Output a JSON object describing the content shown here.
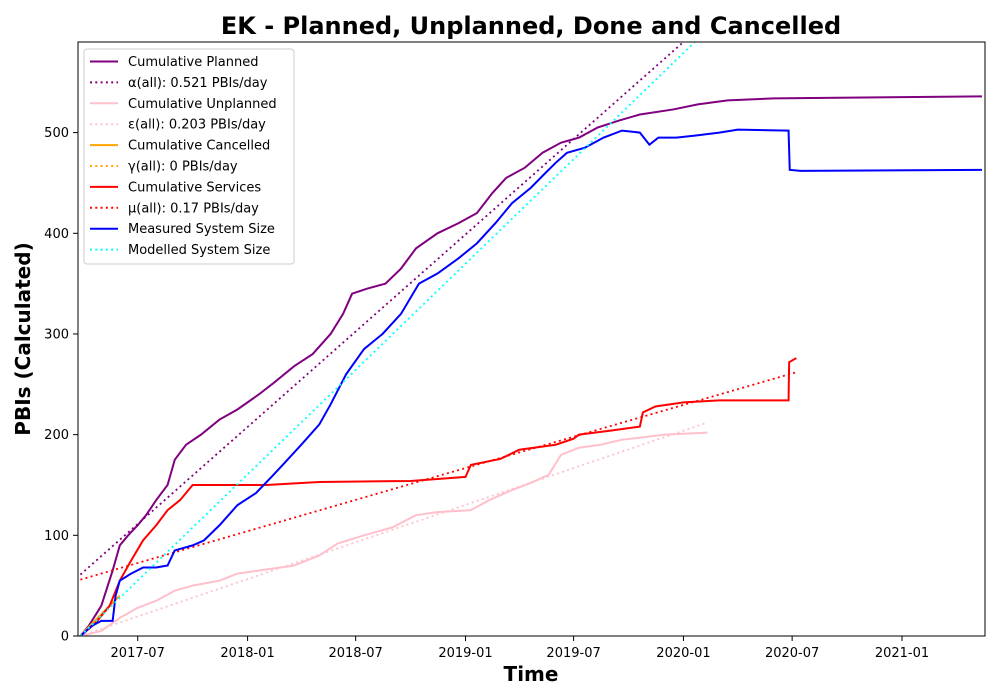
{
  "chart_data": {
    "type": "line",
    "title": "EK - Planned, Unplanned, Done  and Cancelled",
    "xlabel": "Time",
    "ylabel": "PBIs (Calculated)",
    "xlim": [
      "2017-03-23",
      "2021-05-20"
    ],
    "ylim": [
      0,
      590
    ],
    "x_ticks": [
      "2017-07",
      "2018-01",
      "2018-07",
      "2019-01",
      "2019-07",
      "2020-01",
      "2020-07",
      "2021-01"
    ],
    "y_ticks": [
      0,
      100,
      200,
      300,
      400,
      500
    ],
    "grid": false,
    "legend_position": "top-left",
    "series": [
      {
        "name": "Cumulative Planned",
        "color": "#800080",
        "style": "solid",
        "points": [
          [
            "2017-03-27",
            0
          ],
          [
            "2017-04-10",
            10
          ],
          [
            "2017-05-01",
            30
          ],
          [
            "2017-05-20",
            65
          ],
          [
            "2017-06-01",
            90
          ],
          [
            "2017-06-15",
            100
          ],
          [
            "2017-07-01",
            110
          ],
          [
            "2017-07-15",
            120
          ],
          [
            "2017-08-01",
            135
          ],
          [
            "2017-08-20",
            150
          ],
          [
            "2017-09-01",
            175
          ],
          [
            "2017-09-20",
            190
          ],
          [
            "2017-10-15",
            200
          ],
          [
            "2017-11-15",
            215
          ],
          [
            "2017-12-15",
            225
          ],
          [
            "2018-01-20",
            240
          ],
          [
            "2018-02-15",
            252
          ],
          [
            "2018-03-20",
            268
          ],
          [
            "2018-04-20",
            280
          ],
          [
            "2018-05-20",
            300
          ],
          [
            "2018-06-10",
            320
          ],
          [
            "2018-06-25",
            340
          ],
          [
            "2018-07-20",
            345
          ],
          [
            "2018-08-20",
            350
          ],
          [
            "2018-09-15",
            365
          ],
          [
            "2018-10-10",
            385
          ],
          [
            "2018-11-15",
            400
          ],
          [
            "2018-12-20",
            410
          ],
          [
            "2019-01-20",
            420
          ],
          [
            "2019-02-15",
            440
          ],
          [
            "2019-03-10",
            455
          ],
          [
            "2019-04-10",
            465
          ],
          [
            "2019-05-10",
            480
          ],
          [
            "2019-06-10",
            490
          ],
          [
            "2019-07-10",
            495
          ],
          [
            "2019-08-10",
            505
          ],
          [
            "2019-09-15",
            512
          ],
          [
            "2019-10-20",
            518
          ],
          [
            "2019-12-15",
            523
          ],
          [
            "2020-01-25",
            528
          ],
          [
            "2020-03-15",
            532
          ],
          [
            "2020-06-01",
            534
          ],
          [
            "2021-05-15",
            536
          ]
        ]
      },
      {
        "name": "α(all): 0.521 PBIs/day",
        "color": "#800080",
        "style": "dotted",
        "points": [
          [
            "2017-03-27",
            61
          ],
          [
            "2020-01-01",
            590
          ]
        ]
      },
      {
        "name": "Cumulative Unplanned",
        "color": "#ffc0cb",
        "style": "solid",
        "points": [
          [
            "2017-03-27",
            0
          ],
          [
            "2017-05-01",
            5
          ],
          [
            "2017-06-01",
            18
          ],
          [
            "2017-07-01",
            28
          ],
          [
            "2017-08-01",
            35
          ],
          [
            "2017-09-01",
            45
          ],
          [
            "2017-10-01",
            50
          ],
          [
            "2017-11-15",
            55
          ],
          [
            "2017-12-15",
            62
          ],
          [
            "2018-02-01",
            66
          ],
          [
            "2018-03-20",
            70
          ],
          [
            "2018-05-01",
            80
          ],
          [
            "2018-06-01",
            92
          ],
          [
            "2018-07-15",
            100
          ],
          [
            "2018-09-01",
            108
          ],
          [
            "2018-10-10",
            120
          ],
          [
            "2018-11-15",
            123
          ],
          [
            "2019-01-10",
            125
          ],
          [
            "2019-02-10",
            135
          ],
          [
            "2019-03-20",
            145
          ],
          [
            "2019-04-20",
            152
          ],
          [
            "2019-05-20",
            160
          ],
          [
            "2019-06-10",
            180
          ],
          [
            "2019-07-10",
            187
          ],
          [
            "2019-08-15",
            190
          ],
          [
            "2019-09-20",
            195
          ],
          [
            "2019-10-20",
            197
          ],
          [
            "2019-12-01",
            200
          ],
          [
            "2020-02-10",
            202
          ]
        ]
      },
      {
        "name": "ε(all): 0.203 PBIs/day",
        "color": "#ffc0cb",
        "style": "dotted",
        "points": [
          [
            "2017-03-27",
            0
          ],
          [
            "2020-02-10",
            212
          ]
        ]
      },
      {
        "name": "Cumulative Cancelled",
        "color": "#ffa500",
        "style": "solid",
        "points": [
          [
            "2017-03-27",
            0
          ],
          [
            "2017-04-20",
            15
          ],
          [
            "2017-05-15",
            30
          ],
          [
            "2017-06-01",
            40
          ]
        ]
      },
      {
        "name": "γ(all): 0 PBIs/day",
        "color": "#ffa500",
        "style": "dotted",
        "points": [
          [
            "2017-03-27",
            0
          ],
          [
            "2017-06-01",
            40
          ]
        ]
      },
      {
        "name": "Cumulative Services",
        "color": "#ff0000",
        "style": "solid",
        "points": [
          [
            "2017-03-27",
            0
          ],
          [
            "2017-04-20",
            12
          ],
          [
            "2017-05-15",
            30
          ],
          [
            "2017-06-01",
            55
          ],
          [
            "2017-06-20",
            75
          ],
          [
            "2017-07-10",
            95
          ],
          [
            "2017-08-01",
            110
          ],
          [
            "2017-08-20",
            125
          ],
          [
            "2017-09-10",
            135
          ],
          [
            "2017-10-01",
            150
          ],
          [
            "2018-02-01",
            150
          ],
          [
            "2018-05-01",
            153
          ],
          [
            "2018-10-01",
            154
          ],
          [
            "2019-01-01",
            158
          ],
          [
            "2019-01-10",
            170
          ],
          [
            "2019-03-01",
            176
          ],
          [
            "2019-04-01",
            185
          ],
          [
            "2019-06-01",
            190
          ],
          [
            "2019-07-01",
            196
          ],
          [
            "2019-07-10",
            200
          ],
          [
            "2019-09-01",
            204
          ],
          [
            "2019-10-20",
            208
          ],
          [
            "2019-10-25",
            222
          ],
          [
            "2019-11-15",
            228
          ],
          [
            "2020-01-01",
            232
          ],
          [
            "2020-03-01",
            234
          ],
          [
            "2020-06-25",
            234
          ],
          [
            "2020-06-26",
            272
          ],
          [
            "2020-07-08",
            276
          ]
        ]
      },
      {
        "name": "μ(all): 0.17 PBIs/day",
        "color": "#ff0000",
        "style": "dotted",
        "points": [
          [
            "2017-03-27",
            56
          ],
          [
            "2020-07-08",
            262
          ]
        ]
      },
      {
        "name": "Measured System Size",
        "color": "#0000ff",
        "style": "solid",
        "points": [
          [
            "2017-03-27",
            0
          ],
          [
            "2017-04-15",
            10
          ],
          [
            "2017-05-01",
            15
          ],
          [
            "2017-05-20",
            15
          ],
          [
            "2017-05-25",
            40
          ],
          [
            "2017-06-01",
            55
          ],
          [
            "2017-06-20",
            62
          ],
          [
            "2017-07-10",
            68
          ],
          [
            "2017-08-01",
            68
          ],
          [
            "2017-08-20",
            70
          ],
          [
            "2017-09-01",
            85
          ],
          [
            "2017-10-01",
            90
          ],
          [
            "2017-10-20",
            95
          ],
          [
            "2017-11-15",
            110
          ],
          [
            "2017-12-15",
            130
          ],
          [
            "2018-01-15",
            142
          ],
          [
            "2018-02-10",
            158
          ],
          [
            "2018-03-01",
            170
          ],
          [
            "2018-04-01",
            190
          ],
          [
            "2018-05-01",
            210
          ],
          [
            "2018-05-20",
            230
          ],
          [
            "2018-06-15",
            260
          ],
          [
            "2018-07-15",
            285
          ],
          [
            "2018-08-15",
            300
          ],
          [
            "2018-09-15",
            320
          ],
          [
            "2018-10-15",
            350
          ],
          [
            "2018-11-15",
            360
          ],
          [
            "2018-12-20",
            375
          ],
          [
            "2019-01-20",
            390
          ],
          [
            "2019-02-20",
            410
          ],
          [
            "2019-03-20",
            430
          ],
          [
            "2019-04-20",
            445
          ],
          [
            "2019-05-15",
            460
          ],
          [
            "2019-06-01",
            470
          ],
          [
            "2019-06-20",
            480
          ],
          [
            "2019-07-20",
            485
          ],
          [
            "2019-08-20",
            495
          ],
          [
            "2019-09-20",
            502
          ],
          [
            "2019-10-20",
            500
          ],
          [
            "2019-11-05",
            488
          ],
          [
            "2019-11-20",
            495
          ],
          [
            "2019-12-20",
            495
          ],
          [
            "2020-01-20",
            497
          ],
          [
            "2020-03-01",
            500
          ],
          [
            "2020-04-01",
            503
          ],
          [
            "2020-06-25",
            502
          ],
          [
            "2020-06-27",
            463
          ],
          [
            "2020-07-15",
            462
          ],
          [
            "2021-05-15",
            463
          ]
        ]
      },
      {
        "name": "Modelled System Size",
        "color": "#00ffff",
        "style": "dotted",
        "points": [
          [
            "2017-03-27",
            0
          ],
          [
            "2020-01-20",
            590
          ]
        ]
      }
    ]
  }
}
